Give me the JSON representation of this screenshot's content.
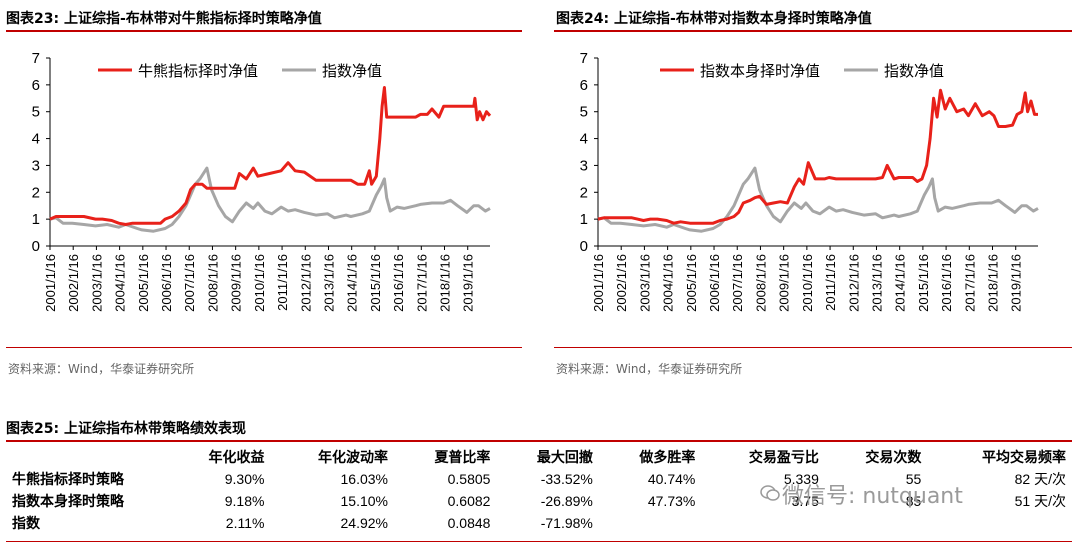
{
  "fig23": {
    "title": "图表23:   上证综指-布林带对牛熊指标择时策略净值",
    "source": "资料来源：Wind，华泰证券研究所",
    "legend": [
      "牛熊指标择时净值",
      "指数净值"
    ]
  },
  "fig24": {
    "title": "图表24:   上证综指-布林带对指数本身择时策略净值",
    "source": "资料来源：Wind，华泰证券研究所",
    "legend": [
      "指数本身择时净值",
      "指数净值"
    ]
  },
  "fig25": {
    "title": "图表25:   上证综指布林带策略绩效表现",
    "headers": [
      "",
      "年化收益",
      "年化波动率",
      "夏普比率",
      "最大回撤",
      "做多胜率",
      "交易盈亏比",
      "交易次数",
      "平均交易频率"
    ],
    "rows": [
      [
        "牛熊指标择时策略",
        "9.30%",
        "16.03%",
        "0.5805",
        "-33.52%",
        "40.74%",
        "5.339",
        "55",
        "82 天/次"
      ],
      [
        "指数本身择时策略",
        "9.18%",
        "15.10%",
        "0.6082",
        "-26.89%",
        "47.73%",
        "3.75",
        "85",
        "51 天/次"
      ],
      [
        "指数",
        "2.11%",
        "24.92%",
        "0.0848",
        "-71.98%",
        "",
        "",
        "",
        ""
      ]
    ]
  },
  "watermark": "微信号: nutquant",
  "colors": {
    "strategy": "#e8211a",
    "index": "#a6a6a6",
    "rule": "#c00000"
  },
  "chart_data": [
    {
      "type": "line",
      "title": "图表23:   上证综指-布林带对牛熊指标择时策略净值",
      "ylim": [
        0,
        7
      ],
      "yticks": [
        0,
        1,
        2,
        3,
        4,
        5,
        6,
        7
      ],
      "x_range": [
        2001.04,
        2020.0
      ],
      "x_ticks": [
        "2001/1/16",
        "2002/1/16",
        "2003/1/16",
        "2004/1/16",
        "2005/1/16",
        "2006/1/16",
        "2007/1/16",
        "2008/1/16",
        "2009/1/16",
        "2010/1/16",
        "2011/1/16",
        "2012/1/16",
        "2013/1/16",
        "2014/1/16",
        "2015/1/16",
        "2016/1/16",
        "2017/1/16",
        "2018/1/16",
        "2019/1/16"
      ],
      "legend_position": "top-center",
      "series": [
        {
          "name": "牛熊指标择时净值",
          "color": "#e8211a",
          "x": [
            2001.04,
            2001.3,
            2001.5,
            2002.0,
            2002.5,
            2003.0,
            2003.3,
            2003.7,
            2004.0,
            2004.3,
            2004.6,
            2005.0,
            2005.5,
            2005.8,
            2006.0,
            2006.3,
            2006.6,
            2006.9,
            2007.1,
            2007.3,
            2007.6,
            2007.8,
            2008.0,
            2008.4,
            2008.8,
            2009.0,
            2009.2,
            2009.5,
            2009.8,
            2010.0,
            2010.5,
            2011.0,
            2011.3,
            2011.6,
            2012.0,
            2012.5,
            2013.0,
            2013.3,
            2013.8,
            2014.0,
            2014.3,
            2014.6,
            2014.8,
            2014.9,
            2015.1,
            2015.25,
            2015.35,
            2015.45,
            2015.55,
            2015.7,
            2016.0,
            2016.5,
            2016.8,
            2017.0,
            2017.3,
            2017.5,
            2017.8,
            2018.0,
            2018.3,
            2018.6,
            2018.9,
            2019.1,
            2019.3,
            2019.35,
            2019.45,
            2019.55,
            2019.7,
            2019.85,
            2020.0
          ],
          "y": [
            1.0,
            1.1,
            1.1,
            1.1,
            1.1,
            1.0,
            1.0,
            0.95,
            0.85,
            0.8,
            0.85,
            0.85,
            0.85,
            0.85,
            1.0,
            1.1,
            1.3,
            1.6,
            2.1,
            2.3,
            2.3,
            2.15,
            2.15,
            2.15,
            2.15,
            2.15,
            2.7,
            2.5,
            2.9,
            2.6,
            2.7,
            2.8,
            3.1,
            2.8,
            2.75,
            2.45,
            2.45,
            2.45,
            2.45,
            2.45,
            2.3,
            2.3,
            2.8,
            2.3,
            2.6,
            4.0,
            5.2,
            5.9,
            4.8,
            4.8,
            4.8,
            4.8,
            4.8,
            4.9,
            4.9,
            5.1,
            4.8,
            5.2,
            5.2,
            5.2,
            5.2,
            5.2,
            5.2,
            5.5,
            4.7,
            5.0,
            4.7,
            5.0,
            4.85
          ]
        },
        {
          "name": "指数净值",
          "color": "#a6a6a6",
          "x": [
            2001.04,
            2001.3,
            2001.6,
            2002.0,
            2002.5,
            2003.0,
            2003.5,
            2004.0,
            2004.3,
            2004.8,
            2005.0,
            2005.5,
            2006.0,
            2006.3,
            2006.6,
            2006.9,
            2007.1,
            2007.3,
            2007.5,
            2007.8,
            2008.0,
            2008.3,
            2008.6,
            2008.9,
            2009.2,
            2009.5,
            2009.8,
            2010.0,
            2010.3,
            2010.6,
            2011.0,
            2011.3,
            2011.6,
            2012.0,
            2012.5,
            2013.0,
            2013.3,
            2013.8,
            2014.0,
            2014.5,
            2014.8,
            2015.1,
            2015.3,
            2015.45,
            2015.55,
            2015.7,
            2016.0,
            2016.3,
            2016.8,
            2017.0,
            2017.5,
            2018.0,
            2018.3,
            2018.6,
            2019.0,
            2019.3,
            2019.5,
            2019.8,
            2020.0
          ],
          "y": [
            1.0,
            1.05,
            0.85,
            0.85,
            0.8,
            0.75,
            0.8,
            0.7,
            0.8,
            0.65,
            0.6,
            0.55,
            0.65,
            0.8,
            1.1,
            1.5,
            1.9,
            2.3,
            2.5,
            2.9,
            2.1,
            1.5,
            1.1,
            0.9,
            1.3,
            1.6,
            1.4,
            1.6,
            1.3,
            1.2,
            1.45,
            1.3,
            1.35,
            1.25,
            1.15,
            1.2,
            1.05,
            1.15,
            1.1,
            1.2,
            1.3,
            1.9,
            2.2,
            2.5,
            1.8,
            1.3,
            1.45,
            1.4,
            1.5,
            1.55,
            1.6,
            1.6,
            1.7,
            1.5,
            1.25,
            1.5,
            1.5,
            1.3,
            1.4
          ]
        }
      ]
    },
    {
      "type": "line",
      "title": "图表24:   上证综指-布林带对指数本身择时策略净值",
      "ylim": [
        0,
        7
      ],
      "yticks": [
        0,
        1,
        2,
        3,
        4,
        5,
        6,
        7
      ],
      "x_range": [
        2001.04,
        2020.0
      ],
      "x_ticks": [
        "2001/1/16",
        "2002/1/16",
        "2003/1/16",
        "2004/1/16",
        "2005/1/16",
        "2006/1/16",
        "2007/1/16",
        "2008/1/16",
        "2009/1/16",
        "2010/1/16",
        "2011/1/16",
        "2012/1/16",
        "2013/1/16",
        "2014/1/16",
        "2015/1/16",
        "2016/1/16",
        "2017/1/16",
        "2018/1/16",
        "2019/1/16"
      ],
      "legend_position": "top-center",
      "series": [
        {
          "name": "指数本身择时净值",
          "color": "#e8211a",
          "x": [
            2001.04,
            2001.3,
            2001.6,
            2002.0,
            2002.5,
            2003.0,
            2003.3,
            2003.6,
            2004.0,
            2004.3,
            2004.6,
            2005.0,
            2005.5,
            2006.0,
            2006.3,
            2006.6,
            2006.9,
            2007.1,
            2007.3,
            2007.6,
            2007.8,
            2008.0,
            2008.3,
            2008.6,
            2008.9,
            2009.2,
            2009.5,
            2009.7,
            2009.9,
            2010.1,
            2010.4,
            2010.8,
            2011.0,
            2011.3,
            2011.6,
            2012.0,
            2012.5,
            2013.0,
            2013.3,
            2013.5,
            2013.8,
            2014.0,
            2014.3,
            2014.6,
            2014.8,
            2015.0,
            2015.2,
            2015.35,
            2015.5,
            2015.65,
            2015.8,
            2016.0,
            2016.2,
            2016.5,
            2016.8,
            2017.0,
            2017.3,
            2017.6,
            2017.9,
            2018.1,
            2018.3,
            2018.6,
            2018.9,
            2019.1,
            2019.3,
            2019.45,
            2019.55,
            2019.7,
            2019.85,
            2020.0
          ],
          "y": [
            1.0,
            1.05,
            1.05,
            1.05,
            1.05,
            0.95,
            1.0,
            1.0,
            0.95,
            0.85,
            0.9,
            0.85,
            0.85,
            0.85,
            0.95,
            1.0,
            1.1,
            1.25,
            1.6,
            1.7,
            1.8,
            1.85,
            1.55,
            1.6,
            1.65,
            1.6,
            2.2,
            2.5,
            2.3,
            3.1,
            2.5,
            2.5,
            2.55,
            2.5,
            2.5,
            2.5,
            2.5,
            2.5,
            2.55,
            3.0,
            2.5,
            2.55,
            2.55,
            2.55,
            2.4,
            2.5,
            3.0,
            4.0,
            5.5,
            4.8,
            5.8,
            5.1,
            5.5,
            5.0,
            5.1,
            4.85,
            5.3,
            4.85,
            5.0,
            4.85,
            4.45,
            4.45,
            4.5,
            4.9,
            5.0,
            5.7,
            5.0,
            5.4,
            4.9,
            4.9
          ]
        },
        {
          "name": "指数净值",
          "color": "#a6a6a6",
          "x": [
            2001.04,
            2001.3,
            2001.6,
            2002.0,
            2002.5,
            2003.0,
            2003.5,
            2004.0,
            2004.3,
            2004.8,
            2005.0,
            2005.5,
            2006.0,
            2006.3,
            2006.6,
            2006.9,
            2007.1,
            2007.3,
            2007.5,
            2007.8,
            2008.0,
            2008.3,
            2008.6,
            2008.9,
            2009.2,
            2009.5,
            2009.8,
            2010.0,
            2010.3,
            2010.6,
            2011.0,
            2011.3,
            2011.6,
            2012.0,
            2012.5,
            2013.0,
            2013.3,
            2013.8,
            2014.0,
            2014.5,
            2014.8,
            2015.1,
            2015.3,
            2015.45,
            2015.55,
            2015.7,
            2016.0,
            2016.3,
            2016.8,
            2017.0,
            2017.5,
            2018.0,
            2018.3,
            2018.6,
            2019.0,
            2019.3,
            2019.5,
            2019.8,
            2020.0
          ],
          "y": [
            1.0,
            1.05,
            0.85,
            0.85,
            0.8,
            0.75,
            0.8,
            0.7,
            0.8,
            0.65,
            0.6,
            0.55,
            0.65,
            0.8,
            1.1,
            1.5,
            1.9,
            2.3,
            2.5,
            2.9,
            2.1,
            1.5,
            1.1,
            0.9,
            1.3,
            1.6,
            1.4,
            1.6,
            1.3,
            1.2,
            1.45,
            1.3,
            1.35,
            1.25,
            1.15,
            1.2,
            1.05,
            1.15,
            1.1,
            1.2,
            1.3,
            1.9,
            2.2,
            2.5,
            1.8,
            1.3,
            1.45,
            1.4,
            1.5,
            1.55,
            1.6,
            1.6,
            1.7,
            1.5,
            1.25,
            1.5,
            1.5,
            1.3,
            1.4
          ]
        }
      ]
    }
  ]
}
